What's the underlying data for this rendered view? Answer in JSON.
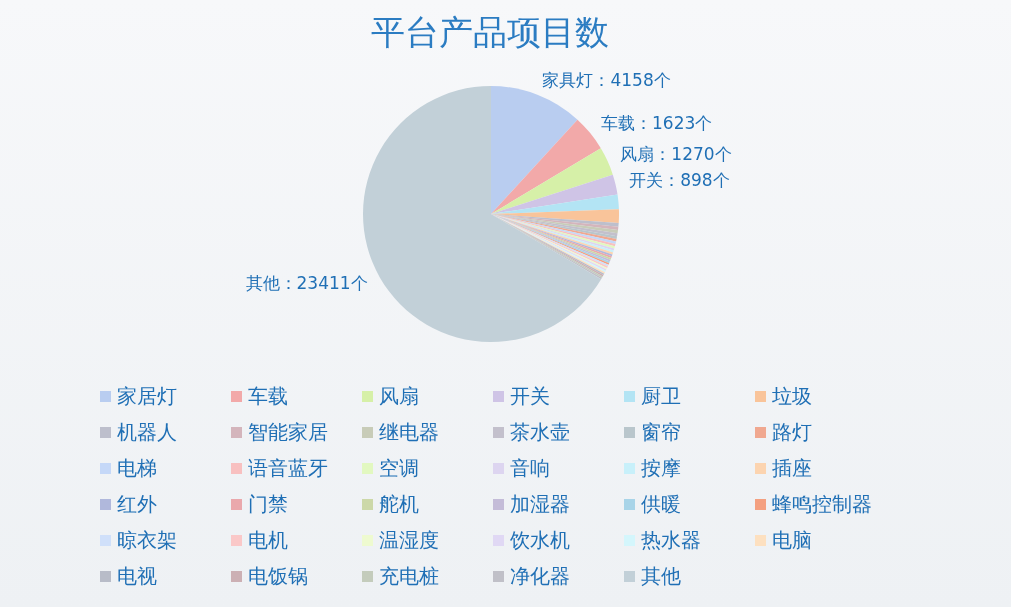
{
  "chart_data": {
    "type": "pie",
    "title": "平台产品项目数",
    "categories": [
      "家居灯",
      "车载",
      "风扇",
      "开关",
      "厨卫",
      "垃圾",
      "机器人",
      "智能家居",
      "继电器",
      "茶水壶",
      "窗帘",
      "路灯",
      "电梯",
      "语音蓝牙",
      "空调",
      "音响",
      "按摩",
      "插座",
      "红外",
      "门禁",
      "舵机",
      "加湿器",
      "供暖",
      "蜂鸣控制器",
      "晾衣架",
      "电机",
      "温湿度",
      "饮水机",
      "热水器",
      "电脑",
      "电视",
      "电饭锅",
      "充电桩",
      "净化器",
      "其他"
    ],
    "values": [
      4158,
      1623,
      1270,
      898,
      650,
      600,
      160,
      150,
      140,
      130,
      120,
      115,
      110,
      105,
      100,
      95,
      90,
      90,
      85,
      85,
      80,
      80,
      80,
      75,
      75,
      75,
      70,
      70,
      70,
      70,
      70,
      70,
      70,
      70,
      23411
    ],
    "colors": [
      "#b9cdf0",
      "#f2a9a9",
      "#d6f0a8",
      "#cfc4e6",
      "#b3e4f4",
      "#f9c49a",
      "#bdbfcc",
      "#d4b5bc",
      "#c8ccb8",
      "#c3c0cc",
      "#b9c6cc",
      "#f0a890",
      "#c5d8f8",
      "#f8c0c0",
      "#e2f8c0",
      "#ddd5f0",
      "#c8f0fa",
      "#fcd4b0",
      "#b0b8dc",
      "#eaa8ac",
      "#ccd8a8",
      "#c4bcd8",
      "#a8d4e8",
      "#f4a080",
      "#d0e0fa",
      "#fac8c8",
      "#eefad0",
      "#e0d8f4",
      "#d4f6fc",
      "#fde0c0",
      "#b8bcc8",
      "#ccb0b4",
      "#c4ccbc",
      "#c0c0c8",
      "#c2d0d8"
    ],
    "value_labels": [
      "家具灯：4158个",
      "车载：1623个",
      "风扇：1270个",
      "开关：898个",
      null,
      null,
      null,
      null,
      null,
      null,
      null,
      null,
      null,
      null,
      null,
      null,
      null,
      null,
      null,
      null,
      null,
      null,
      null,
      null,
      null,
      null,
      null,
      null,
      null,
      null,
      null,
      null,
      null,
      null,
      "其他：23411个"
    ],
    "legend": "bottom"
  }
}
